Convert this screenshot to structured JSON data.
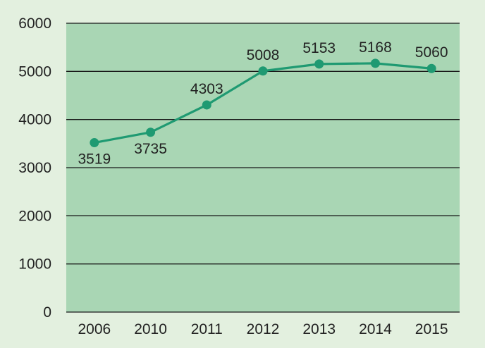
{
  "chart_data": {
    "type": "line",
    "categories": [
      "2006",
      "2010",
      "2011",
      "2012",
      "2013",
      "2014",
      "2015"
    ],
    "series": [
      {
        "values": [
          3519,
          3735,
          4303,
          5008,
          5153,
          5168,
          5060
        ]
      }
    ],
    "data_labels": [
      "3519",
      "3735",
      "4303",
      "5008",
      "5153",
      "5168",
      "5060"
    ],
    "y_ticks": [
      "0",
      "1000",
      "2000",
      "3000",
      "4000",
      "5000",
      "6000"
    ],
    "ylim": [
      0,
      6000
    ],
    "grid": true,
    "legend": "none",
    "title": "",
    "xlabel": "",
    "ylabel": ""
  },
  "colors": {
    "page_background": "#e3f0df",
    "plot_background": "#a9d6b4",
    "gridline": "#1a1a1a",
    "series_line": "#1f9a72",
    "marker": "#1f9a72"
  }
}
